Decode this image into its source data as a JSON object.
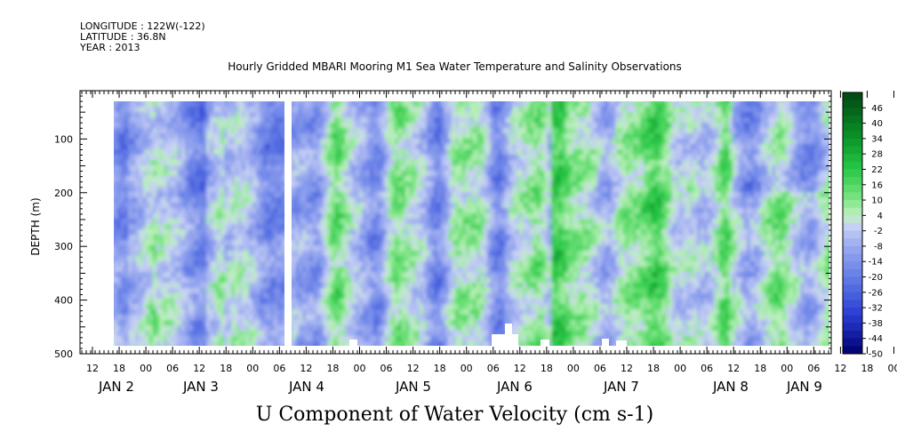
{
  "header": {
    "longitude": "LONGITUDE : 122W(-122)",
    "latitude": "LATITUDE : 36.8N",
    "year": "YEAR : 2013"
  },
  "chart_data": {
    "type": "heatmap",
    "title": "Hourly Gridded MBARI Mooring M1 Sea Water Temperature and Salinity Observations",
    "xlabel": "U Component of Water Velocity (cm s-1)",
    "ylabel": "DEPTH (m)",
    "y_axis": {
      "range": [
        500,
        10
      ],
      "ticks": [
        100,
        200,
        300,
        400,
        500
      ],
      "inverted": true
    },
    "x_axis": {
      "hour_ticks": [
        "12",
        "18",
        "00",
        "06",
        "12",
        "18",
        "00",
        "06",
        "12",
        "18",
        "00",
        "06",
        "12",
        "18",
        "00",
        "06",
        "12",
        "18",
        "00",
        "06",
        "12",
        "18",
        "00",
        "06",
        "12",
        "18",
        "00",
        "06",
        "12",
        "18",
        "00",
        "06",
        "12",
        "18",
        "00",
        "06",
        "12",
        "18",
        "00",
        "06",
        "12",
        "18",
        "00",
        "06"
      ],
      "date_labels": [
        "JAN 2",
        "JAN 3",
        "JAN 4",
        "JAN 5",
        "JAN 6",
        "JAN 7",
        "JAN 8",
        "JAN 9"
      ]
    },
    "colorbar": {
      "levels": [
        "46",
        "40",
        "34",
        "28",
        "22",
        "16",
        "10",
        "4",
        "-2",
        "-8",
        "-14",
        "-20",
        "-26",
        "-32",
        "-38",
        "-44",
        "-50"
      ],
      "min": -50,
      "max": 52,
      "step": 3
    },
    "data_gap": "late JAN 3 (about 07 UT)",
    "field_summary": "Values mostly range from about -20 (blue) to +20 (green); predominantly blue (westward flow) before JAN 4, with strong green (eastward flow) bands extending through the water column on JAN 6 - JAN 8."
  }
}
